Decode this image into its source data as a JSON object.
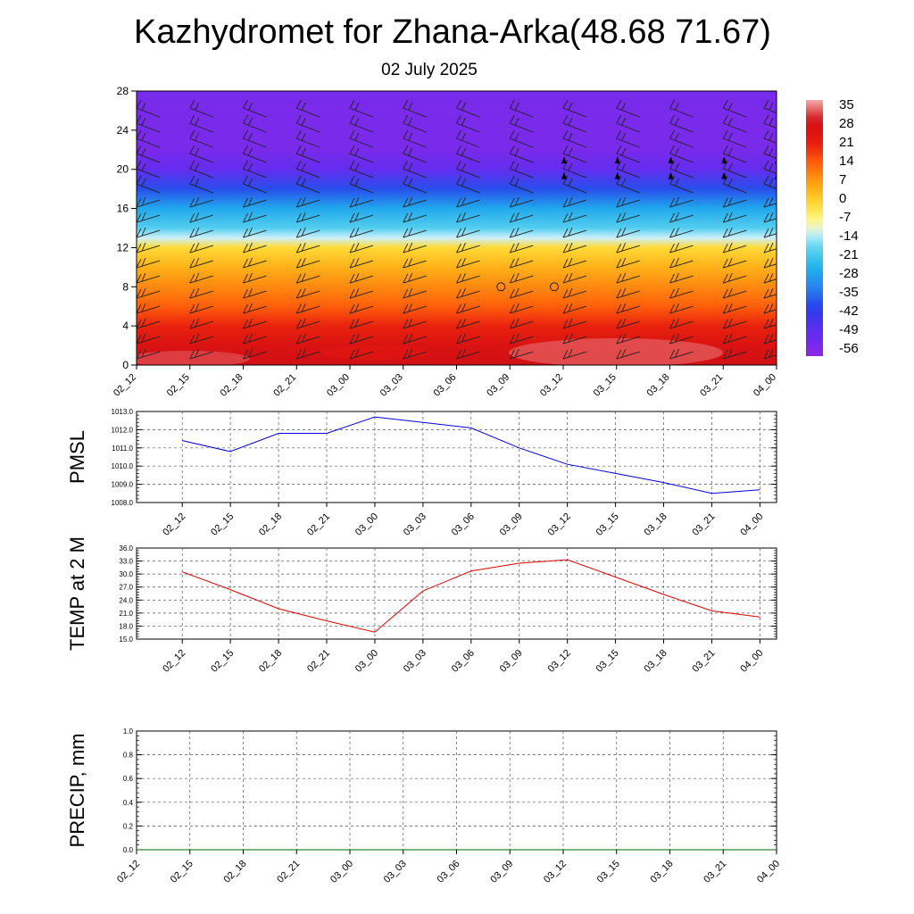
{
  "title": "Kazhydromet for Zhana-Arka(48.68 71.67)",
  "subtitle": "02 July 2025",
  "time_labels": [
    "02_12",
    "02_15",
    "02_18",
    "02_21",
    "03_00",
    "03_03",
    "03_06",
    "03_09",
    "03_12",
    "03_15",
    "03_18",
    "03_21",
    "04_00"
  ],
  "chart_data": [
    {
      "type": "heatmap",
      "name": "vertical-profile",
      "x": [
        "02_12",
        "02_15",
        "02_18",
        "02_21",
        "03_00",
        "03_03",
        "03_06",
        "03_09",
        "03_12",
        "03_15",
        "03_18",
        "03_21",
        "04_00"
      ],
      "ylim": [
        0,
        28
      ],
      "yticks": [
        0,
        4,
        8,
        12,
        16,
        20,
        24,
        28
      ],
      "colorbar": {
        "labels": [
          "35",
          "28",
          "21",
          "14",
          "7",
          "0",
          "-7",
          "-14",
          "-21",
          "-28",
          "-35",
          "-42",
          "-49",
          "-56"
        ],
        "range": [
          -60,
          38
        ]
      },
      "temperature_profile_by_height": [
        {
          "h": 0,
          "t": 30
        },
        {
          "h": 2,
          "t": 27
        },
        {
          "h": 4,
          "t": 21
        },
        {
          "h": 6,
          "t": 14
        },
        {
          "h": 8,
          "t": 9
        },
        {
          "h": 10,
          "t": 4
        },
        {
          "h": 12,
          "t": -2
        },
        {
          "h": 13,
          "t": -13
        },
        {
          "h": 14,
          "t": -20
        },
        {
          "h": 16,
          "t": -28
        },
        {
          "h": 18,
          "t": -40
        },
        {
          "h": 20,
          "t": -51
        },
        {
          "h": 22,
          "t": -56
        },
        {
          "h": 26,
          "t": -56
        },
        {
          "h": 28,
          "t": -55
        }
      ],
      "wind_barbs": "present"
    },
    {
      "type": "line",
      "name": "PMSL",
      "ylabel": "PMSL",
      "x": [
        "02_12",
        "02_15",
        "02_18",
        "02_21",
        "03_00",
        "03_03",
        "03_06",
        "03_09",
        "03_12",
        "03_15",
        "03_18",
        "03_21",
        "04_00"
      ],
      "values": [
        1011.4,
        1010.8,
        1011.8,
        1011.8,
        1012.7,
        1012.4,
        1012.1,
        1011.0,
        1010.1,
        1009.6,
        1009.1,
        1008.5,
        1008.7
      ],
      "ylim": [
        1008.0,
        1013.0
      ],
      "yticks": [
        "1008.0",
        "1009.0",
        "1010.0",
        "1011.0",
        "1012.0",
        "1013.0"
      ],
      "color": "#0000e6"
    },
    {
      "type": "line",
      "name": "TEMP at 2 M",
      "ylabel": "TEMP at 2 M",
      "x": [
        "02_12",
        "02_15",
        "02_18",
        "02_21",
        "03_00",
        "03_03",
        "03_06",
        "03_09",
        "03_12",
        "03_15",
        "03_18",
        "03_21",
        "04_00"
      ],
      "values": [
        30.5,
        26.4,
        22.0,
        19.2,
        16.6,
        26.1,
        30.7,
        32.5,
        33.3,
        29.3,
        25.3,
        21.5,
        20.1
      ],
      "ylim": [
        15.0,
        36.0
      ],
      "yticks": [
        "15.0",
        "18.0",
        "21.0",
        "24.0",
        "27.0",
        "30.0",
        "33.0",
        "36.0"
      ],
      "color": "#e60000"
    },
    {
      "type": "line",
      "name": "PRECIP, mm",
      "ylabel": "PRECIP, mm",
      "x": [
        "02_12",
        "02_15",
        "02_18",
        "02_21",
        "03_00",
        "03_03",
        "03_06",
        "03_09",
        "03_12",
        "03_15",
        "03_18",
        "03_21",
        "04_00"
      ],
      "values": [
        0,
        0,
        0,
        0,
        0,
        0,
        0,
        0,
        0,
        0,
        0,
        0,
        0
      ],
      "ylim": [
        0.0,
        1.0
      ],
      "yticks": [
        "0.0",
        "0.2",
        "0.4",
        "0.6",
        "0.8",
        "1.0"
      ],
      "color": "#006400"
    }
  ]
}
